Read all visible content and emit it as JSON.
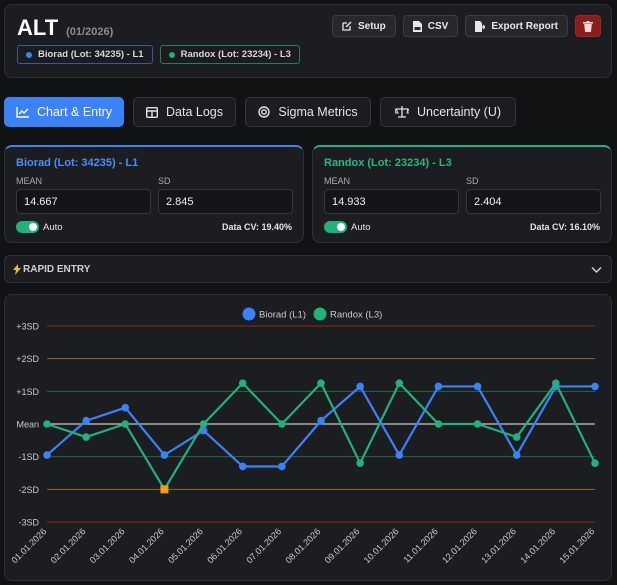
{
  "header": {
    "title": "ALT",
    "period": "(01/2026)",
    "buttons": {
      "setup": "Setup",
      "csv": "CSV",
      "export": "Export Report"
    },
    "lots": [
      {
        "label": "Biorad (Lot: 34235) - L1",
        "color": "#3b82f6"
      },
      {
        "label": "Randox (Lot: 23234) - L3",
        "color": "#22b07d"
      }
    ]
  },
  "tabs": [
    {
      "label": "Chart & Entry",
      "icon": "chart-line-icon",
      "active": true
    },
    {
      "label": "Data Logs",
      "icon": "table-icon",
      "active": false
    },
    {
      "label": "Sigma Metrics",
      "icon": "target-icon",
      "active": false
    },
    {
      "label": "Uncertainty (U)",
      "icon": "scale-icon",
      "active": false
    }
  ],
  "cards": {
    "biorad": {
      "title": "Biorad (Lot: 34235) - L1",
      "mean_label": "MEAN",
      "mean_value": "14.667",
      "sd_label": "SD",
      "sd_value": "2.845",
      "auto_label": "Auto",
      "auto_on": true,
      "cv": "Data CV: 19.40%"
    },
    "randox": {
      "title": "Randox (Lot: 23234) - L3",
      "mean_label": "MEAN",
      "mean_value": "14.933",
      "sd_label": "SD",
      "sd_value": "2.404",
      "auto_label": "Auto",
      "auto_on": true,
      "cv": "Data CV: 16.10%"
    }
  },
  "rapid_entry": {
    "label": "RAPID ENTRY",
    "icon": "lightning-icon"
  },
  "chart_data": {
    "type": "line",
    "categories": [
      "01.01.2026",
      "02.01.2026",
      "03.01.2026",
      "04.01.2026",
      "05.01.2026",
      "06.01.2026",
      "07.01.2026",
      "08.01.2026",
      "09.01.2026",
      "10.01.2026",
      "11.01.2026",
      "12.01.2026",
      "13.01.2026",
      "14.01.2026",
      "15.01.2026"
    ],
    "ylim": [
      -3,
      3
    ],
    "y_ticks": [
      {
        "value": 3,
        "label": "+3SD",
        "color": "#8c2a2a"
      },
      {
        "value": 2,
        "label": "+2SD",
        "color": "#8a6a1a"
      },
      {
        "value": 1,
        "label": "+1SD",
        "color": "#1f6a44"
      },
      {
        "value": 0,
        "label": "Mean",
        "color": "#c8c8c8"
      },
      {
        "value": -1,
        "label": "-1SD",
        "color": "#1f6a44"
      },
      {
        "value": -2,
        "label": "-2SD",
        "color": "#8a6a1a"
      },
      {
        "value": -3,
        "label": "-3SD",
        "color": "#8c2a2a"
      }
    ],
    "legend_position": "top-center",
    "series": [
      {
        "name": "Biorad (L1)",
        "color": "#3b82f6",
        "values": [
          -0.95,
          0.1,
          0.5,
          -0.95,
          -0.2,
          -1.3,
          -1.3,
          0.1,
          1.15,
          -0.95,
          1.15,
          1.15,
          -0.95,
          1.15,
          1.15
        ]
      },
      {
        "name": "Randox (L3)",
        "color": "#22b07d",
        "values": [
          0.0,
          -0.4,
          0.0,
          -2.0,
          0.0,
          1.25,
          0.0,
          1.25,
          -1.2,
          1.25,
          0.0,
          0.0,
          -0.4,
          1.25,
          -1.2
        ]
      }
    ],
    "flagged_points": [
      {
        "series": 1,
        "index": 3,
        "color": "#f59e0b"
      }
    ]
  }
}
